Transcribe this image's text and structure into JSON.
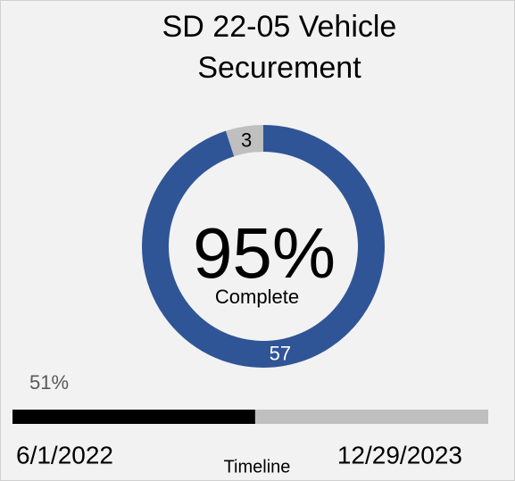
{
  "chart_data": {
    "type": "donut",
    "title_lines": [
      "SD 22-05 Vehicle",
      "Securement"
    ],
    "values": [
      57,
      3
    ],
    "colors": [
      "#2f5597",
      "#bfbfbf"
    ],
    "center_label": "95%",
    "center_caption": "Complete"
  },
  "timeline": {
    "progress": 51,
    "progress_label": "51%",
    "start": "6/1/2022",
    "end": "12/29/2023",
    "label": "Timeline",
    "color": "#000000",
    "track_color": "#bfbfbf"
  }
}
